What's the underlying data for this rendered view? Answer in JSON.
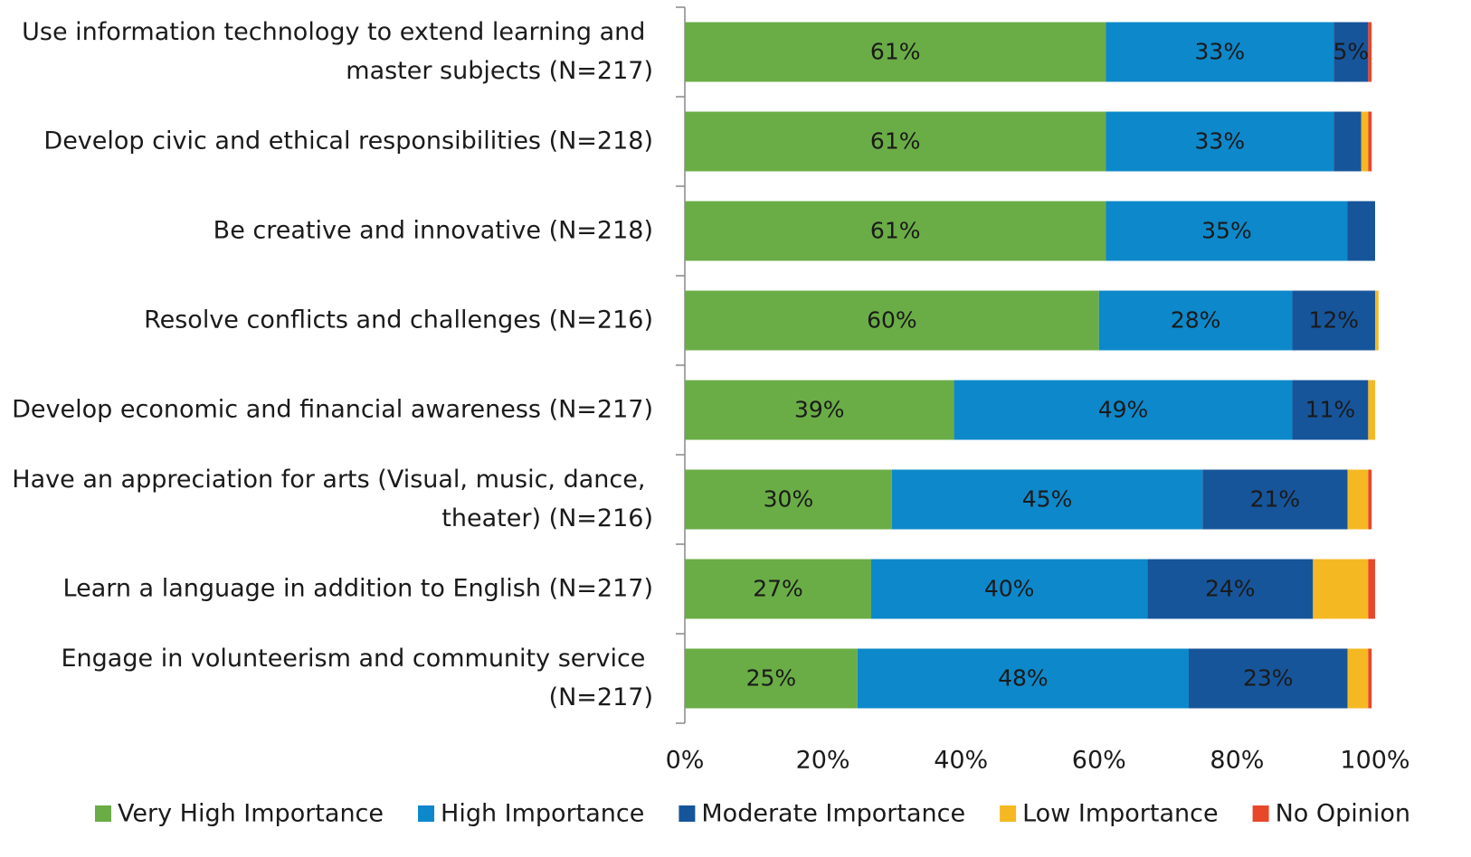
{
  "chart_data": {
    "type": "stacked-barh",
    "categories": [
      "Use information technology to extend learning and master subjects (N=217)",
      "Develop civic and ethical responsibilities (N=218)",
      "Be creative and innovative (N=218)",
      "Resolve conflicts and challenges (N=216)",
      "Develop economic and financial awareness (N=217)",
      "Have an appreciation for arts (Visual, music, dance, theater) (N=216)",
      "Learn a language in addition to English (N=217)",
      "Engage in volunteerism and community service (N=217)"
    ],
    "series": [
      {
        "name": "Very High Importance",
        "color": "#6aad46",
        "values": [
          61,
          61,
          61,
          60,
          39,
          30,
          27,
          25
        ],
        "value_labels": [
          "61%",
          "61%",
          "61%",
          "60%",
          "39%",
          "30%",
          "27%",
          "25%"
        ]
      },
      {
        "name": "High Importance",
        "color": "#0d88ca",
        "values": [
          33,
          33,
          35,
          28,
          49,
          45,
          40,
          48
        ],
        "value_labels": [
          "33%",
          "33%",
          "35%",
          "28%",
          "49%",
          "45%",
          "40%",
          "48%"
        ]
      },
      {
        "name": "Moderate Importance",
        "color": "#17559a",
        "values": [
          5,
          4,
          4,
          12,
          11,
          21,
          24,
          23
        ],
        "value_labels": [
          "5%",
          null,
          null,
          "12%",
          "11%",
          "21%",
          "24%",
          "23%"
        ]
      },
      {
        "name": "Low Importance",
        "color": "#f4b823",
        "values": [
          0,
          1,
          0,
          0.5,
          1,
          3,
          8,
          3
        ],
        "value_labels": [
          null,
          null,
          null,
          null,
          null,
          null,
          null,
          null
        ]
      },
      {
        "name": "No Opinion",
        "color": "#e8472b",
        "values": [
          0.5,
          0.5,
          0,
          0,
          0,
          0.5,
          1,
          0.5
        ],
        "value_labels": [
          null,
          null,
          null,
          null,
          null,
          null,
          null,
          null
        ]
      }
    ],
    "xlim": [
      0,
      100
    ],
    "xticks": [
      {
        "value": 0,
        "label": "0%"
      },
      {
        "value": 20,
        "label": "20%"
      },
      {
        "value": 40,
        "label": "40%"
      },
      {
        "value": 60,
        "label": "60%"
      },
      {
        "value": 80,
        "label": "80%"
      },
      {
        "value": 100,
        "label": "100%"
      }
    ],
    "legend": "bottom"
  }
}
